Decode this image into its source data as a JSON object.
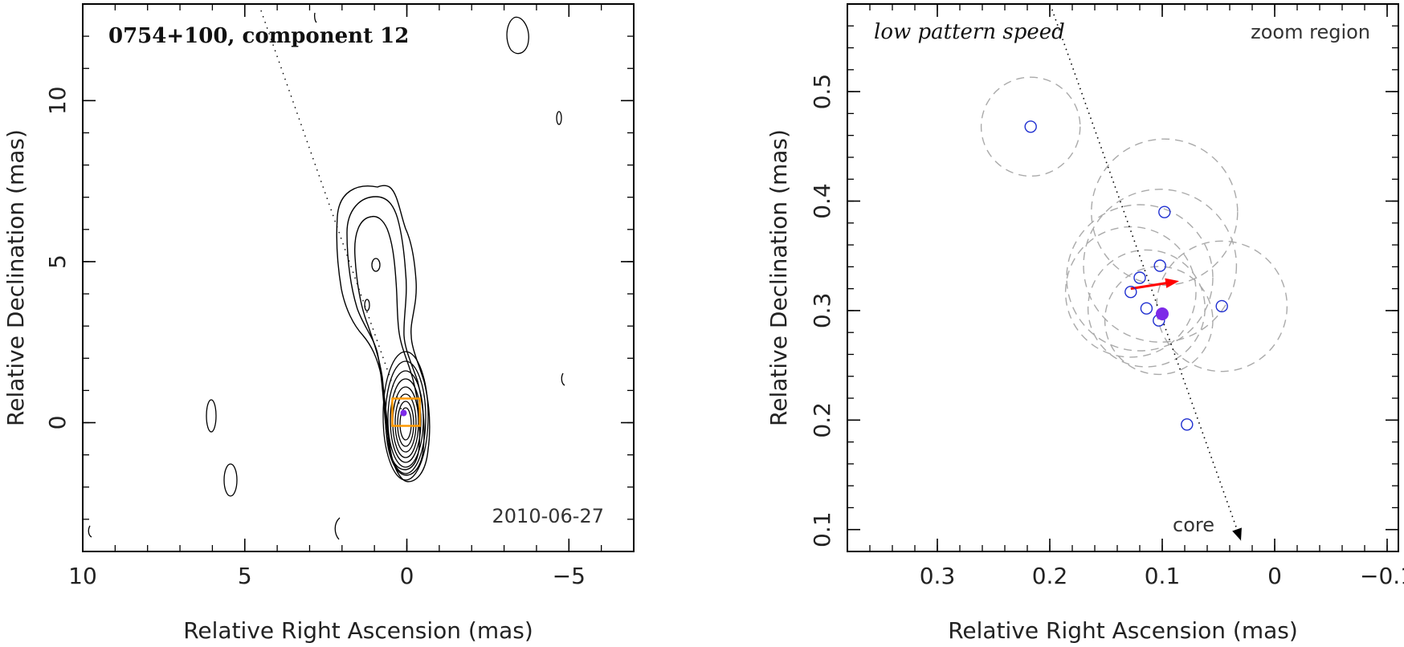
{
  "chart_data": [
    {
      "type": "contour",
      "title": "0754+100, component 12",
      "date_label": "2010-06-27",
      "xlabel": "Relative Right Ascension (mas)",
      "ylabel": "Relative Declination (mas)",
      "xlim": [
        10,
        -7
      ],
      "ylim": [
        -4,
        13
      ],
      "x_ticks": [
        10,
        5,
        0,
        -5
      ],
      "x_tick_labels": [
        "10",
        "5",
        "0",
        "−5"
      ],
      "y_ticks": [
        0,
        5,
        10
      ],
      "y_tick_labels": [
        "0",
        "5",
        "10"
      ],
      "jet_ridge_line": {
        "from": [
          4.5,
          12.8
        ],
        "to": [
          0.15,
          0.35
        ],
        "style": "dotted"
      },
      "zoom_box": {
        "x": [
          0.25,
          -0.2
        ],
        "y": [
          0.1,
          0.55
        ],
        "color": "#ff9900"
      },
      "component_marker": {
        "x": 0.1,
        "y": 0.3,
        "color": "#7d2ae8"
      }
    },
    {
      "type": "scatter",
      "title": "low pattern speed",
      "region_label": "zoom region",
      "xlabel": "Relative Right Ascension (mas)",
      "ylabel": "Relative Declination (mas)",
      "xlim": [
        0.38,
        -0.11
      ],
      "ylim": [
        0.08,
        0.58
      ],
      "x_ticks": [
        0.3,
        0.2,
        0.1,
        0,
        -0.1
      ],
      "x_tick_labels": [
        "0.3",
        "0.2",
        "0.1",
        "0",
        "−0.1"
      ],
      "y_ticks": [
        0.1,
        0.2,
        0.3,
        0.4,
        0.5
      ],
      "y_tick_labels": [
        "0.1",
        "0.2",
        "0.3",
        "0.4",
        "0.5"
      ],
      "positions": [
        {
          "x": 0.217,
          "y": 0.468
        },
        {
          "x": 0.098,
          "y": 0.39
        },
        {
          "x": 0.102,
          "y": 0.341
        },
        {
          "x": 0.12,
          "y": 0.33
        },
        {
          "x": 0.128,
          "y": 0.317
        },
        {
          "x": 0.114,
          "y": 0.302
        },
        {
          "x": 0.103,
          "y": 0.291
        },
        {
          "x": 0.047,
          "y": 0.304
        },
        {
          "x": 0.078,
          "y": 0.196
        }
      ],
      "uncertainty_radii": [
        0.044,
        0.065,
        0.068,
        0.065,
        0.058,
        0.052,
        0.048,
        0.058,
        0.0
      ],
      "mean_position": {
        "x": 0.1,
        "y": 0.297
      },
      "velocity_arrow": {
        "from": [
          0.128,
          0.32
        ],
        "to": [
          0.085,
          0.327
        ],
        "color": "#ff0000"
      },
      "ridge_line": {
        "from": [
          0.198,
          0.575
        ],
        "to": [
          0.03,
          0.09
        ]
      },
      "core_label": "core",
      "point_color": "#1f2fd0",
      "mean_color": "#7d2ae8",
      "circle_color": "#aaaaaa"
    }
  ]
}
